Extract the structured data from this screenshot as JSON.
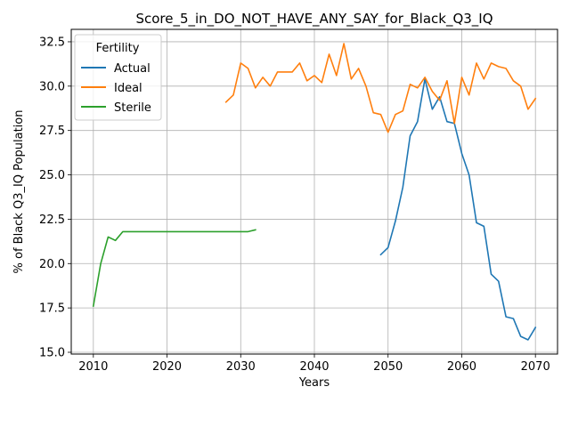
{
  "chart_data": {
    "type": "line",
    "title": "Score_5_in_DO_NOT_HAVE_ANY_SAY_for_Black_Q3_IQ",
    "xlabel": "Years",
    "ylabel": "% of Black Q3_IQ Population",
    "xlim": [
      2007,
      2073
    ],
    "ylim": [
      14.9,
      33.2
    ],
    "xticks": [
      2010,
      2020,
      2030,
      2040,
      2050,
      2060,
      2070
    ],
    "yticks": [
      15.0,
      17.5,
      20.0,
      22.5,
      25.0,
      27.5,
      30.0,
      32.5
    ],
    "ytick_labels": [
      "15.0",
      "17.5",
      "20.0",
      "22.5",
      "25.0",
      "27.5",
      "30.0",
      "32.5"
    ],
    "grid": true,
    "legend": {
      "title": "Fertility",
      "placement": "top-left"
    },
    "series": [
      {
        "name": "Actual",
        "color": "#1f77b4",
        "x": [
          2049,
          2050,
          2051,
          2052,
          2053,
          2054,
          2055,
          2056,
          2057,
          2058,
          2059,
          2060,
          2061,
          2062,
          2063,
          2064,
          2065,
          2066,
          2067,
          2068,
          2069,
          2070
        ],
        "y": [
          20.5,
          20.9,
          22.4,
          24.3,
          27.2,
          28.0,
          30.4,
          28.7,
          29.4,
          28.0,
          27.9,
          26.2,
          25.0,
          22.3,
          22.1,
          19.4,
          19.0,
          17.0,
          16.9,
          15.9,
          15.7,
          16.4
        ]
      },
      {
        "name": "Ideal",
        "color": "#ff7f0e",
        "x": [
          2028,
          2029,
          2030,
          2031,
          2032,
          2033,
          2034,
          2035,
          2036,
          2037,
          2038,
          2039,
          2040,
          2041,
          2042,
          2043,
          2044,
          2045,
          2046,
          2047,
          2048,
          2049,
          2050,
          2051,
          2052,
          2053,
          2054,
          2055,
          2056,
          2057,
          2058,
          2059,
          2060,
          2061,
          2062,
          2063,
          2064,
          2065,
          2066,
          2067,
          2068,
          2069,
          2070
        ],
        "y": [
          29.1,
          29.5,
          31.3,
          31.0,
          29.9,
          30.5,
          30.0,
          30.8,
          30.8,
          30.8,
          31.3,
          30.3,
          30.6,
          30.2,
          31.8,
          30.6,
          32.4,
          30.4,
          31.0,
          30.0,
          28.5,
          28.4,
          27.4,
          28.4,
          28.6,
          30.1,
          29.9,
          30.5,
          29.7,
          29.2,
          30.3,
          27.9,
          30.5,
          29.5,
          31.3,
          30.4,
          31.3,
          31.1,
          31.0,
          30.3,
          30.0,
          28.7,
          29.3
        ]
      },
      {
        "name": "Sterile",
        "color": "#2ca02c",
        "x": [
          2010,
          2011,
          2012,
          2013,
          2014,
          2015,
          2016,
          2017,
          2018,
          2019,
          2020,
          2021,
          2022,
          2023,
          2024,
          2025,
          2026,
          2027,
          2028,
          2029,
          2030,
          2031,
          2032
        ],
        "y": [
          17.6,
          20.0,
          21.5,
          21.3,
          21.8,
          21.8,
          21.8,
          21.8,
          21.8,
          21.8,
          21.8,
          21.8,
          21.8,
          21.8,
          21.8,
          21.8,
          21.8,
          21.8,
          21.8,
          21.8,
          21.8,
          21.8,
          21.9
        ]
      }
    ]
  }
}
